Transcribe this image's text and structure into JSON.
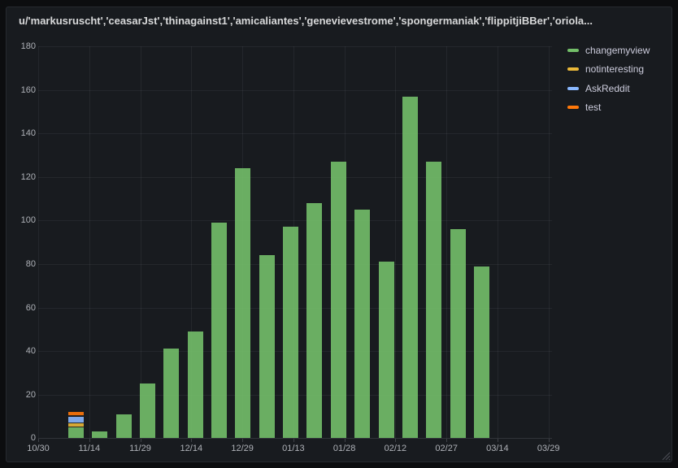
{
  "panel": {
    "title": "u/'markusruscht','ceasarJst','thinagainst1','amicaliantes','genevievestrome','spongermaniak','flippitjiBBer','oriola..."
  },
  "legend": {
    "items": [
      {
        "label": "changemyview",
        "color": "#73BF69"
      },
      {
        "label": "notinteresting",
        "color": "#EAB839"
      },
      {
        "label": "AskReddit",
        "color": "#8AB8FF"
      },
      {
        "label": "test",
        "color": "#FF780A"
      }
    ]
  },
  "chart_data": {
    "type": "bar",
    "stacked": true,
    "title": "u/'markusruscht','ceasarJst','thinagainst1','amicaliantes','genevievestrome','spongermaniak','flippitjiBBer','oriola...",
    "x_tick_labels": [
      "10/30",
      "11/14",
      "11/29",
      "12/14",
      "12/29",
      "01/13",
      "01/28",
      "02/12",
      "02/27",
      "03/14",
      "03/29"
    ],
    "y_ticks": [
      0,
      20,
      40,
      60,
      80,
      100,
      120,
      140,
      160,
      180
    ],
    "ylim": [
      0,
      180
    ],
    "grid": true,
    "legend_position": "top-right",
    "n_bars": 18,
    "series": [
      {
        "name": "changemyview",
        "color": "#73BF69",
        "values": [
          5,
          3,
          11,
          25,
          41,
          49,
          99,
          124,
          84,
          97,
          108,
          127,
          105,
          81,
          157,
          127,
          96,
          79
        ]
      },
      {
        "name": "notinteresting",
        "color": "#EAB839",
        "values": [
          2,
          0,
          0,
          0,
          0,
          0,
          0,
          0,
          0,
          0,
          0,
          0,
          0,
          0,
          0,
          0,
          0,
          0
        ]
      },
      {
        "name": "AskReddit",
        "color": "#8AB8FF",
        "values": [
          3,
          0,
          0,
          0,
          0,
          0,
          0,
          0,
          0,
          0,
          0,
          0,
          0,
          0,
          0,
          0,
          0,
          0
        ]
      },
      {
        "name": "test",
        "color": "#FF780A",
        "values": [
          2,
          0,
          0,
          0,
          0,
          0,
          0,
          0,
          0,
          0,
          0,
          0,
          0,
          0,
          0,
          0,
          0,
          0
        ]
      }
    ]
  }
}
